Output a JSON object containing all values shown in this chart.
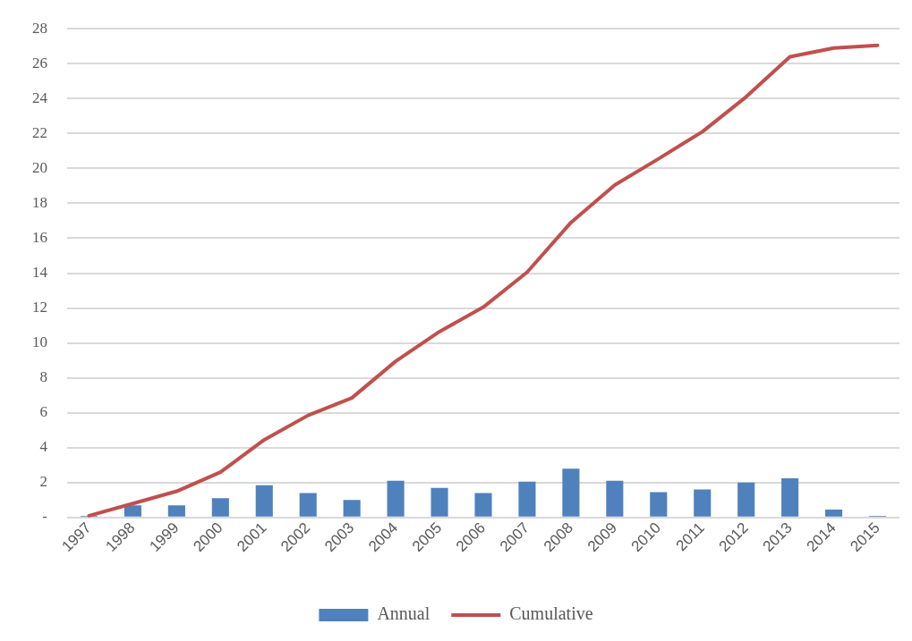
{
  "chart_data": {
    "type": "bar",
    "categories": [
      "1997",
      "1998",
      "1999",
      "2000",
      "2001",
      "2002",
      "2003",
      "2004",
      "2005",
      "2006",
      "2007",
      "2008",
      "2009",
      "2010",
      "2011",
      "2012",
      "2013",
      "2014",
      "2015"
    ],
    "series": [
      {
        "name": "Annual",
        "type": "bar",
        "color": "#4f81bd",
        "values": [
          0.1,
          0.7,
          0.7,
          1.1,
          1.85,
          1.4,
          1.0,
          2.1,
          1.7,
          1.4,
          2.05,
          2.8,
          2.1,
          1.45,
          1.6,
          2.0,
          2.25,
          0.45,
          0.1
        ]
      },
      {
        "name": "Cumulative",
        "type": "line",
        "color": "#c0504d",
        "values": [
          0.1,
          0.8,
          1.5,
          2.6,
          4.45,
          5.85,
          6.85,
          8.95,
          10.65,
          12.05,
          14.05,
          16.9,
          19.05,
          20.55,
          22.1,
          24.1,
          26.4,
          26.9,
          27.05
        ]
      }
    ],
    "ylim": [
      0,
      28
    ],
    "yticks": [
      {
        "value": 0,
        "label": "-"
      },
      2,
      4,
      6,
      8,
      10,
      12,
      14,
      16,
      18,
      20,
      22,
      24,
      26,
      28
    ],
    "grid": "y",
    "legend": "bottom",
    "marker": "none",
    "line_style": "solid"
  }
}
